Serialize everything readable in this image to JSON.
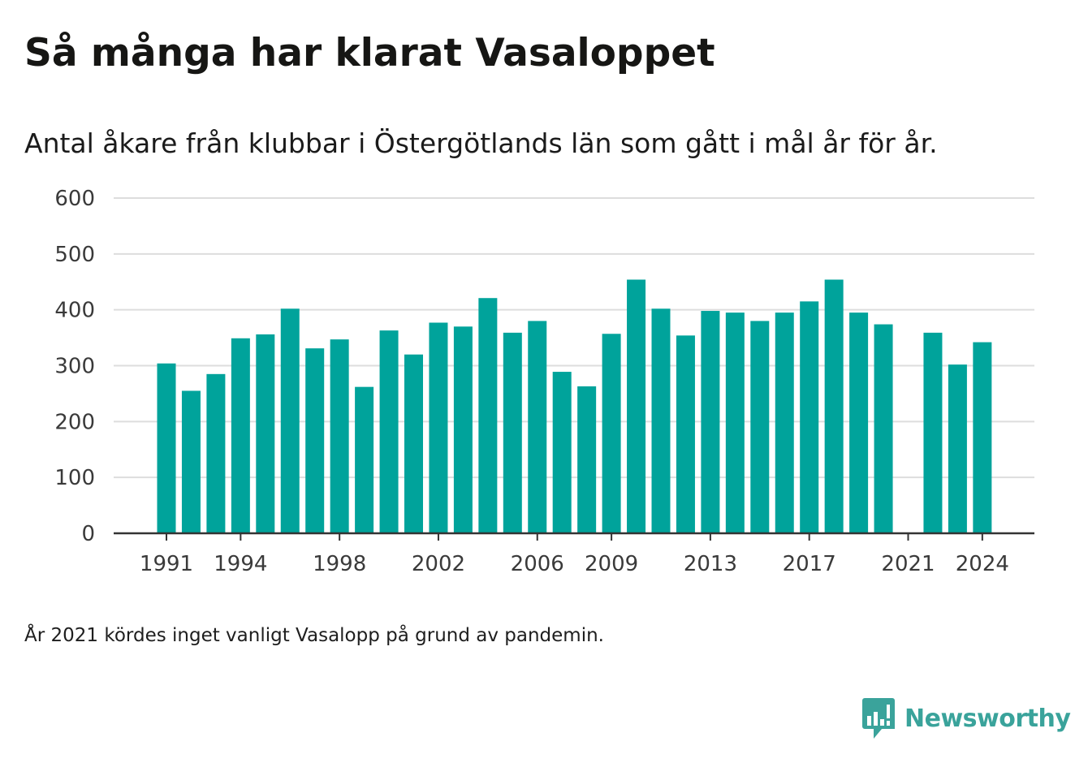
{
  "header": {
    "title": "Så många har klarat Vasaloppet",
    "subtitle": "Antal åkare från klubbar i Östergötlands län som gått i mål år för år."
  },
  "footer": {
    "note": "År 2021 kördes inget vanligt Vasalopp på grund av pandemin.",
    "brand": "Newsworthy",
    "brand_icon": "newsworthy-logo-icon"
  },
  "colors": {
    "bar": "#00a39b",
    "grid": "#dddddd",
    "axis": "#333333",
    "brand": "#3aa39b"
  },
  "chart_data": {
    "type": "bar",
    "title": "Så många har klarat Vasaloppet",
    "subtitle": "Antal åkare från klubbar i Östergötlands län som gått i mål år för år.",
    "xlabel": "",
    "ylabel": "",
    "ylim": [
      0,
      600
    ],
    "yticks": [
      0,
      100,
      200,
      300,
      400,
      500,
      600
    ],
    "xtick_labels": [
      "1991",
      "1994",
      "1998",
      "2002",
      "2006",
      "2009",
      "2013",
      "2017",
      "2021",
      "2024"
    ],
    "grid": true,
    "legend": "none",
    "categories": [
      1991,
      1992,
      1993,
      1994,
      1995,
      1996,
      1997,
      1998,
      1999,
      2000,
      2001,
      2002,
      2003,
      2004,
      2005,
      2006,
      2007,
      2008,
      2009,
      2010,
      2011,
      2012,
      2013,
      2014,
      2015,
      2016,
      2017,
      2018,
      2019,
      2020,
      2021,
      2022,
      2023,
      2024
    ],
    "values": [
      304,
      255,
      285,
      349,
      356,
      402,
      331,
      347,
      262,
      363,
      320,
      377,
      370,
      421,
      359,
      380,
      289,
      263,
      357,
      454,
      402,
      354,
      398,
      395,
      380,
      395,
      415,
      454,
      395,
      374,
      null,
      359,
      302,
      342
    ]
  }
}
